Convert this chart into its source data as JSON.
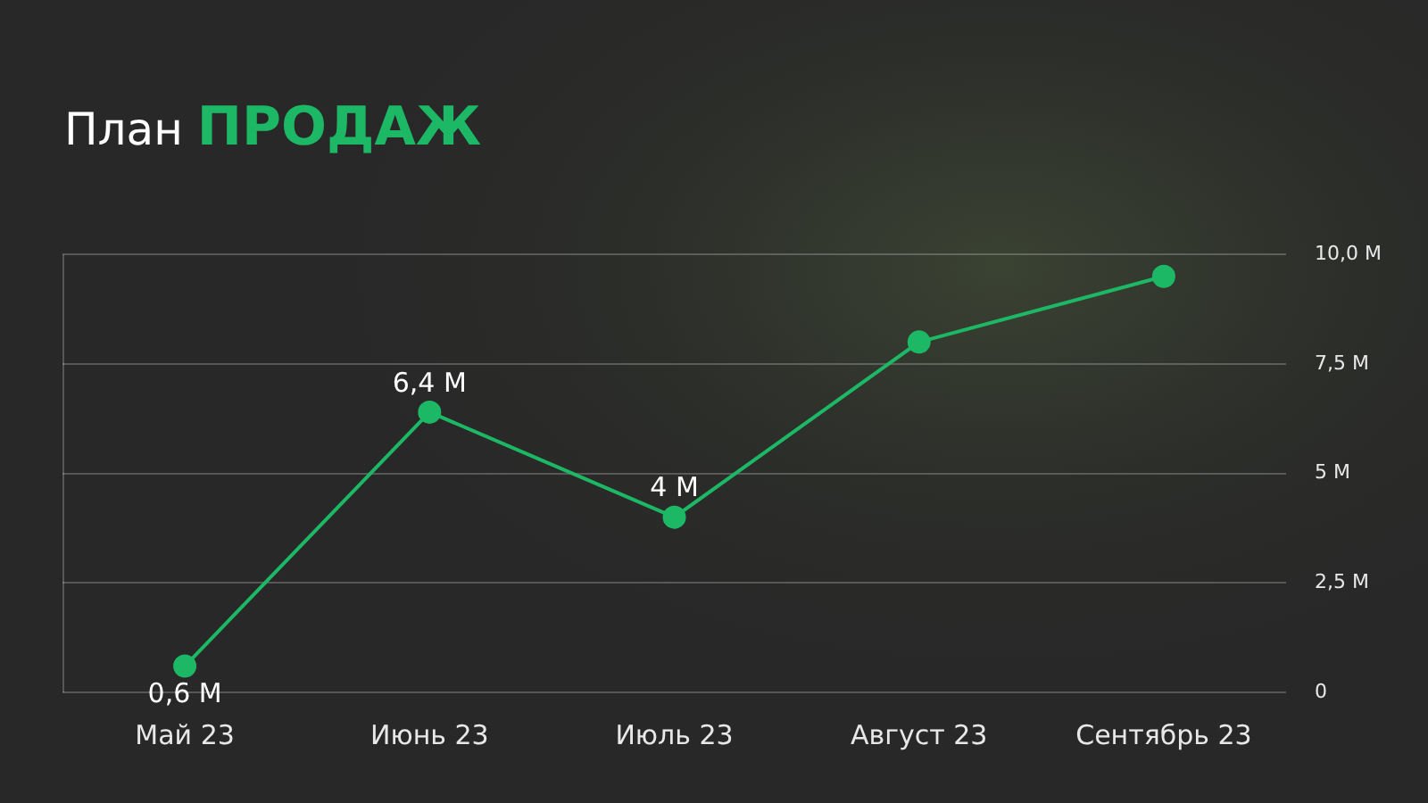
{
  "chart_data": {
    "type": "line",
    "title": "План ПРОДАЖ",
    "categories": [
      "Май 23",
      "Июнь 23",
      "Июль 23",
      "Август 23",
      "Сентябрь 23"
    ],
    "series": [
      {
        "color": "#1db866",
        "values": [
          0.6,
          6.4,
          4,
          8.0,
          9.5
        ],
        "value_labels": [
          "0,6 M",
          "6,4 M",
          "4 M",
          null,
          null
        ]
      }
    ],
    "ylim": [
      0,
      10
    ],
    "yticks": [
      {
        "value": 0,
        "label": "0"
      },
      {
        "value": 2.5,
        "label": "2,5 M"
      },
      {
        "value": 5,
        "label": "5 M"
      },
      {
        "value": 7.5,
        "label": "7,5 M"
      },
      {
        "value": 10,
        "label": "10,0 M"
      }
    ],
    "grid": "y",
    "legend": false,
    "marker": "circle",
    "line_style": "solid"
  }
}
